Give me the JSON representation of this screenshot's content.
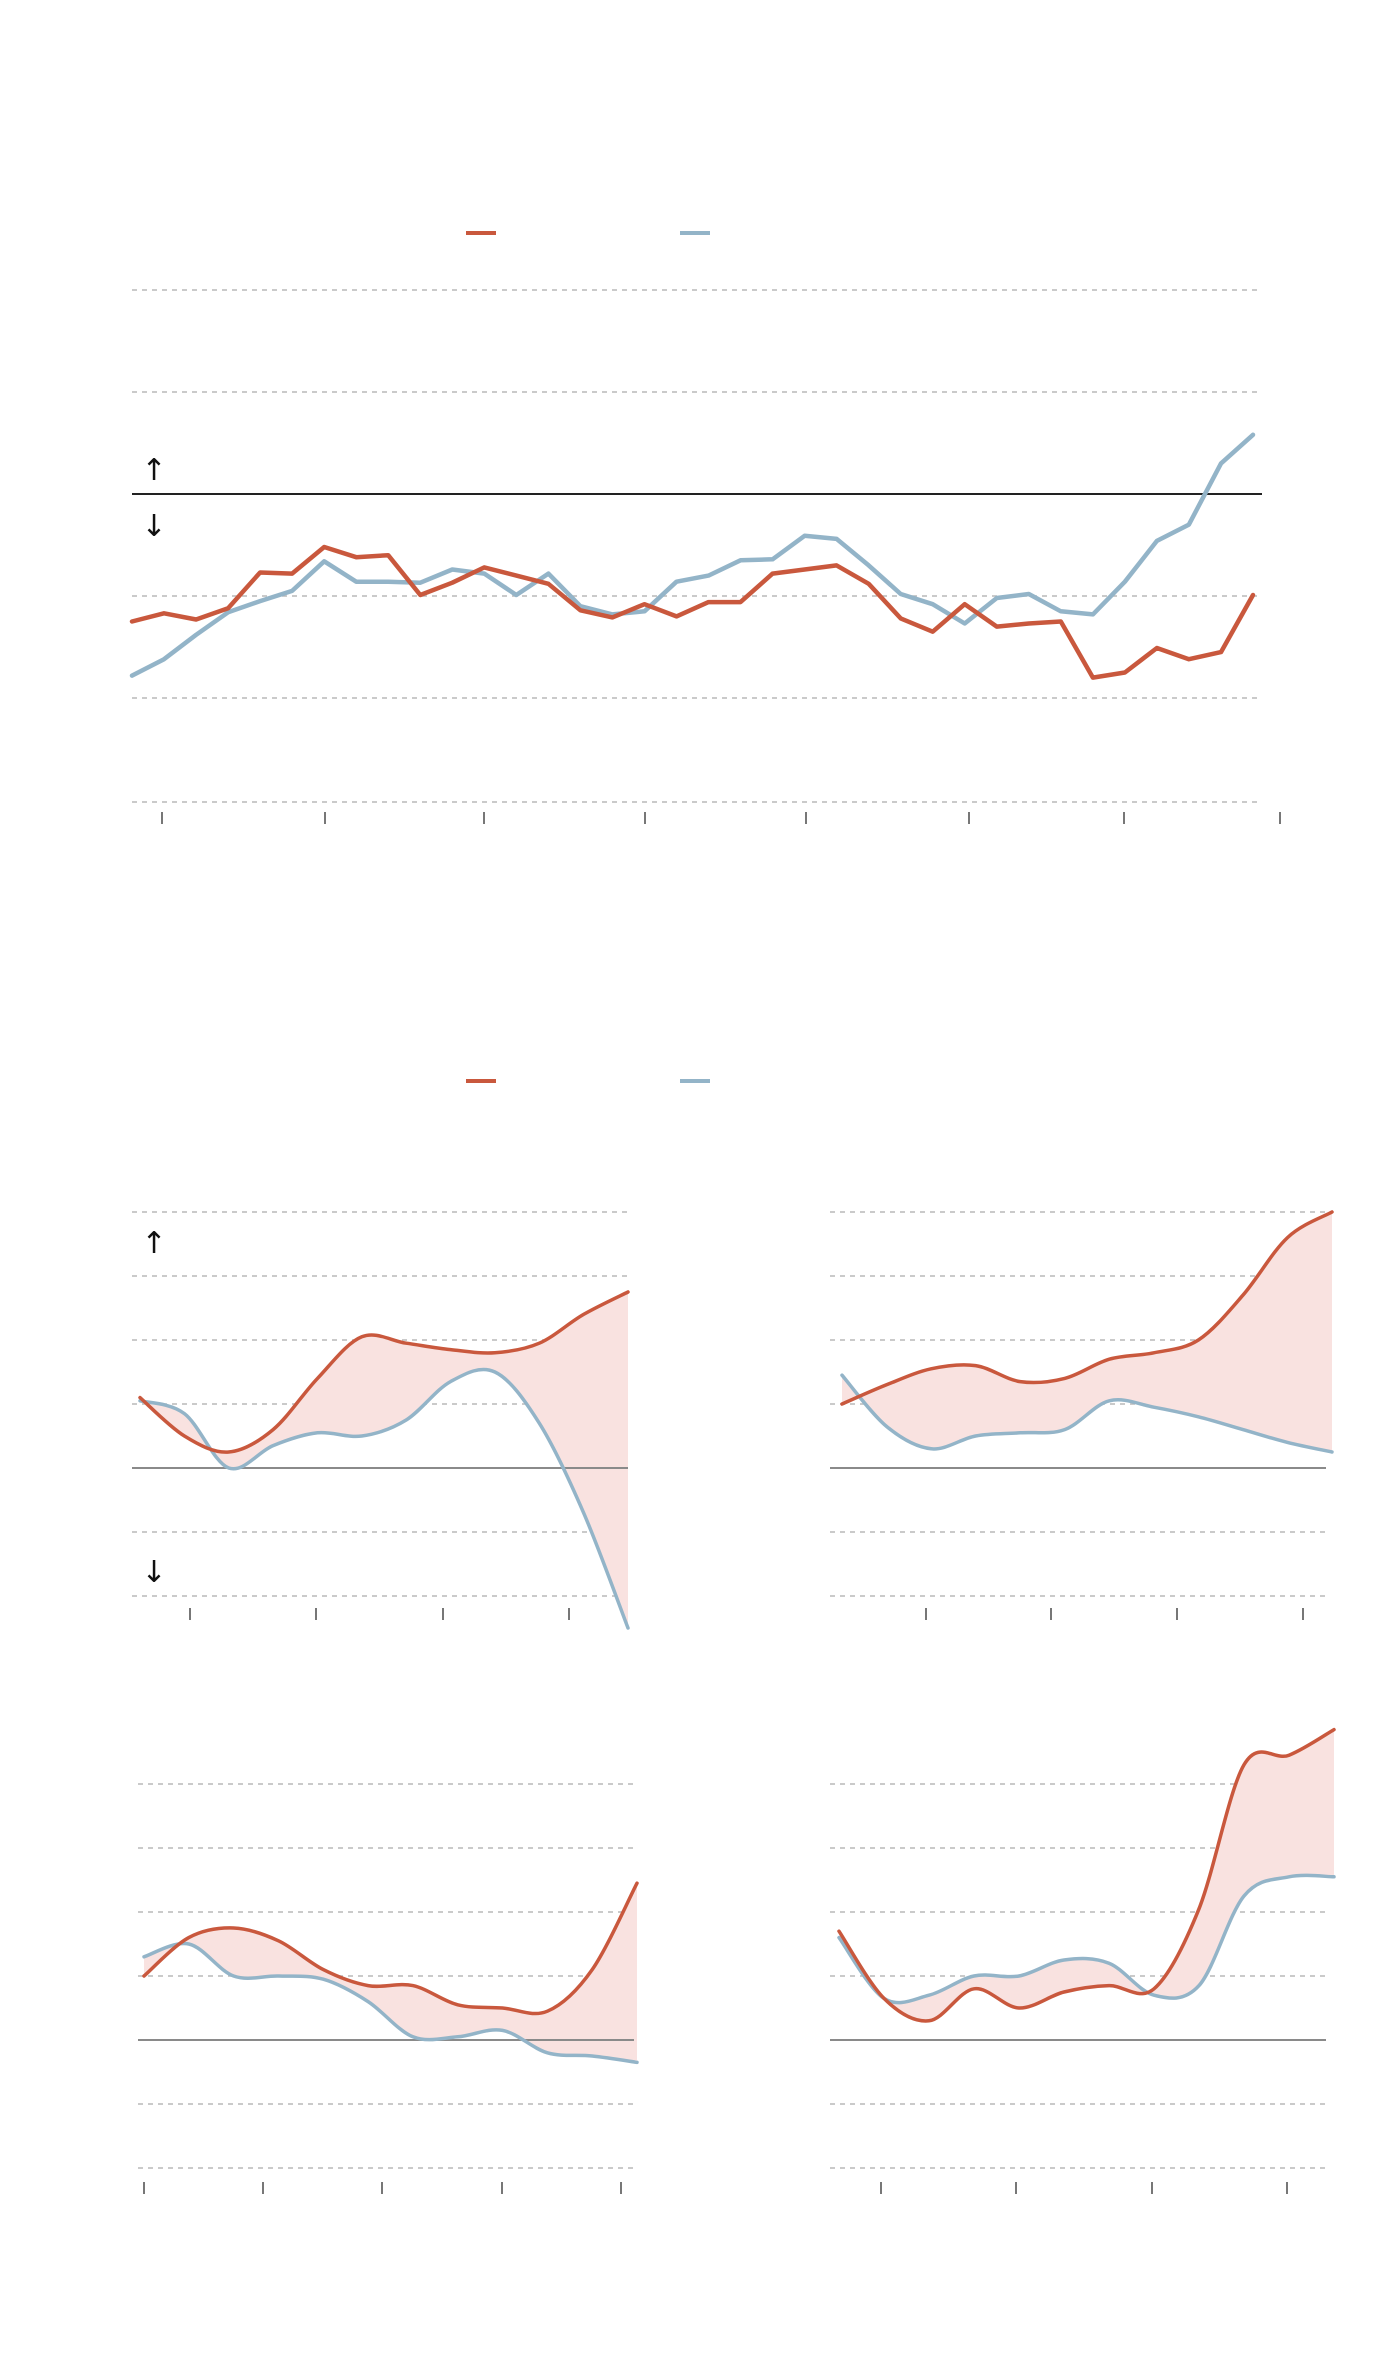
{
  "colors": {
    "series_a": "#c9583d",
    "series_b": "#93b4c8",
    "gap_fill": "#f9e2e0",
    "arrow": "#111111"
  },
  "icons": {
    "up": "↑",
    "down": "↓"
  },
  "chart_data": [
    {
      "type": "line",
      "title": "",
      "xlabel": "",
      "ylabel": "",
      "ylim": [
        -2,
        2
      ],
      "gridlines": [
        2,
        1,
        -1,
        -2
      ],
      "zero_line": true,
      "grid": true,
      "legend": "top-center",
      "x": [
        0,
        1,
        2,
        3,
        4,
        5,
        6,
        7,
        8,
        9,
        10,
        11,
        12,
        13,
        14,
        15,
        16,
        17,
        18,
        19,
        20,
        21,
        22,
        23,
        24,
        25,
        26,
        27,
        28,
        29,
        30,
        31,
        32,
        33,
        34,
        35
      ],
      "series": [
        {
          "values": [
            -1.25,
            -1.17,
            -1.23,
            -1.12,
            -0.77,
            -0.78,
            -0.52,
            -0.62,
            -0.6,
            -0.99,
            -0.87,
            -0.72,
            -0.8,
            -0.88,
            -1.14,
            -1.21,
            -1.08,
            -1.2,
            -1.06,
            -1.06,
            -0.78,
            -0.74,
            -0.7,
            -0.88,
            -1.22,
            -1.35,
            -1.08,
            -1.3,
            -1.27,
            -1.25,
            -1.8,
            -1.75,
            -1.51,
            -1.62,
            -1.55,
            -0.99
          ]
        },
        {
          "values": [
            -1.78,
            -1.62,
            -1.38,
            -1.16,
            -1.05,
            -0.95,
            -0.66,
            -0.86,
            -0.86,
            -0.87,
            -0.74,
            -0.78,
            -0.99,
            -0.78,
            -1.1,
            -1.18,
            -1.15,
            -0.86,
            -0.8,
            -0.65,
            -0.64,
            -0.41,
            -0.44,
            -0.7,
            -0.98,
            -1.08,
            -1.27,
            -1.02,
            -0.98,
            -1.15,
            -1.18,
            -0.86,
            -0.46,
            -0.3,
            0.3,
            0.58
          ]
        }
      ]
    },
    {
      "type": "line",
      "title": "",
      "ylim": [
        -2.5,
        4
      ],
      "gridlines": [
        4,
        3,
        2,
        1,
        -1,
        -2
      ],
      "zero_line": true,
      "series": [
        {
          "values": [
            1.1,
            0.5,
            0.25,
            0.6,
            1.4,
            2.05,
            1.95,
            1.85,
            1.8,
            1.95,
            2.4,
            2.75
          ]
        },
        {
          "values": [
            1.05,
            0.85,
            0.0,
            0.35,
            0.55,
            0.5,
            0.75,
            1.35,
            1.5,
            0.7,
            -0.7,
            -2.5
          ]
        }
      ]
    },
    {
      "type": "line",
      "title": "",
      "ylim": [
        -2,
        4
      ],
      "gridlines": [
        4,
        3,
        2,
        1,
        -1,
        -2
      ],
      "zero_line": true,
      "series": [
        {
          "values": [
            1.0,
            1.3,
            1.55,
            1.6,
            1.35,
            1.4,
            1.7,
            1.8,
            2.0,
            2.7,
            3.6,
            4.0
          ]
        },
        {
          "values": [
            1.45,
            0.65,
            0.3,
            0.5,
            0.55,
            0.6,
            1.05,
            0.95,
            0.8,
            0.6,
            0.4,
            0.25
          ]
        }
      ]
    },
    {
      "type": "line",
      "title": "",
      "ylim": [
        -2,
        4
      ],
      "gridlines": [
        4,
        3,
        2,
        1,
        -1,
        -2
      ],
      "zero_line": true,
      "series": [
        {
          "values": [
            1.0,
            1.6,
            1.75,
            1.55,
            1.1,
            0.85,
            0.85,
            0.55,
            0.5,
            0.45,
            1.1,
            2.45
          ]
        },
        {
          "values": [
            1.3,
            1.5,
            1.0,
            1.0,
            0.95,
            0.6,
            0.05,
            0.05,
            0.15,
            -0.2,
            -0.25,
            -0.35
          ]
        }
      ]
    },
    {
      "type": "line",
      "title": "",
      "ylim": [
        -2,
        5
      ],
      "gridlines": [
        4,
        3,
        2,
        1,
        -1,
        -2
      ],
      "zero_line": true,
      "series": [
        {
          "values": [
            1.7,
            0.65,
            0.3,
            0.8,
            0.5,
            0.75,
            0.85,
            0.8,
            2.05,
            4.3,
            4.45,
            4.85
          ]
        },
        {
          "values": [
            1.6,
            0.65,
            0.7,
            1.0,
            1.0,
            1.25,
            1.2,
            0.7,
            0.85,
            2.25,
            2.55,
            2.55
          ]
        }
      ]
    }
  ]
}
